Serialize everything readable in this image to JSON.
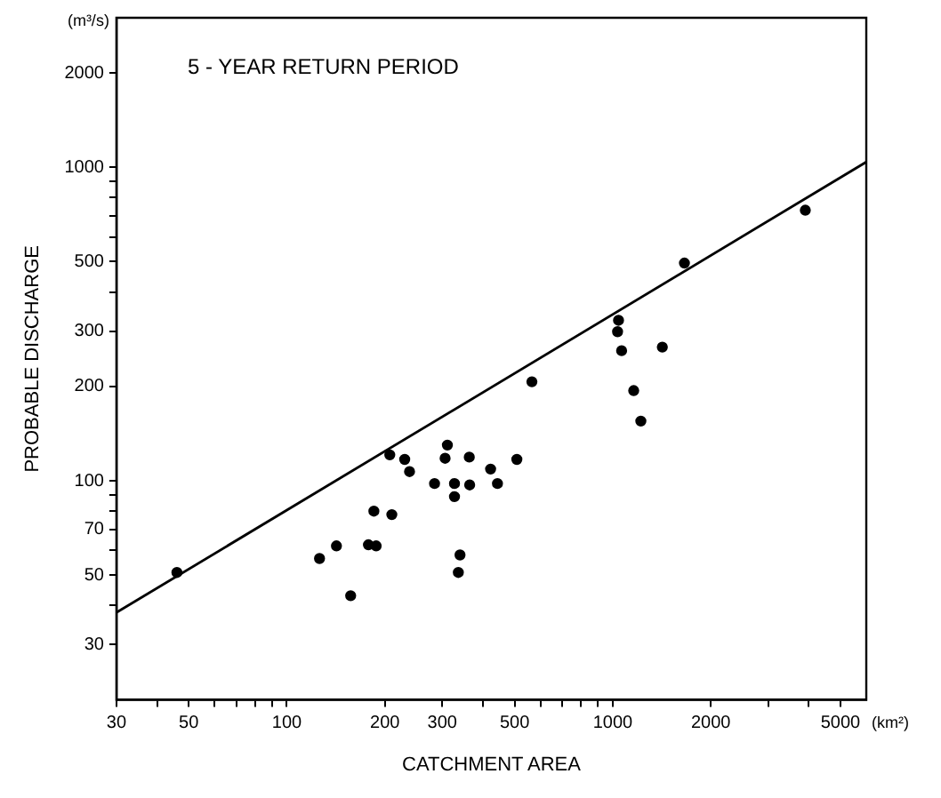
{
  "chart_data": {
    "type": "scatter",
    "title": "5 - YEAR RETURN PERIOD",
    "xlabel": "CATCHMENT AREA",
    "ylabel": "PROBABLE DISCHARGE",
    "annotations": [
      "(m³/s)",
      "(km²)"
    ],
    "log": "xy",
    "grid": false,
    "marker": "circle",
    "xlim": [
      30,
      6000
    ],
    "ylim": [
      20,
      3000
    ],
    "xticks": [
      30,
      {
        "value": 40,
        "label": null
      },
      50,
      {
        "value": 60,
        "label": null
      },
      {
        "value": 70,
        "label": null
      },
      {
        "value": 80,
        "label": null
      },
      {
        "value": 90,
        "label": null
      },
      100,
      200,
      300,
      {
        "value": 400,
        "label": null
      },
      500,
      {
        "value": 600,
        "label": null
      },
      {
        "value": 700,
        "label": null
      },
      {
        "value": 800,
        "label": null
      },
      {
        "value": 900,
        "label": null
      },
      1000,
      2000,
      {
        "value": 3000,
        "label": null
      },
      {
        "value": 4000,
        "label": null
      },
      5000
    ],
    "yticks": [
      30,
      {
        "value": 40,
        "label": null
      },
      50,
      {
        "value": 60,
        "label": null
      },
      70,
      {
        "value": 80,
        "label": null
      },
      {
        "value": 90,
        "label": null
      },
      100,
      200,
      300,
      {
        "value": 400,
        "label": null
      },
      500,
      {
        "value": 600,
        "label": null
      },
      {
        "value": 700,
        "label": null
      },
      {
        "value": 800,
        "label": null
      },
      {
        "value": 900,
        "label": null
      },
      1000,
      2000
    ],
    "series": [
      {
        "color": "#000000",
        "x": [
          46,
          126,
          142,
          157,
          178,
          188,
          185,
          210,
          207,
          230,
          238,
          284,
          311,
          306,
          363,
          327,
          364,
          327,
          340,
          336,
          422,
          443,
          508,
          565,
          1042,
          1035,
          1065,
          1420,
          1160,
          1220,
          1660,
          3900
        ],
        "values": [
          51,
          56.5,
          62,
          43,
          62.5,
          62,
          80,
          78,
          121,
          117,
          107,
          98,
          130,
          118,
          119,
          98,
          97,
          89,
          58,
          51,
          109,
          98,
          117,
          207,
          325,
          299,
          260,
          267,
          194,
          155,
          495,
          730
        ]
      },
      {
        "type": "line",
        "marker": "none",
        "color": "#000000",
        "x": [
          30,
          6000
        ],
        "values": [
          38,
          1040
        ]
      }
    ]
  }
}
